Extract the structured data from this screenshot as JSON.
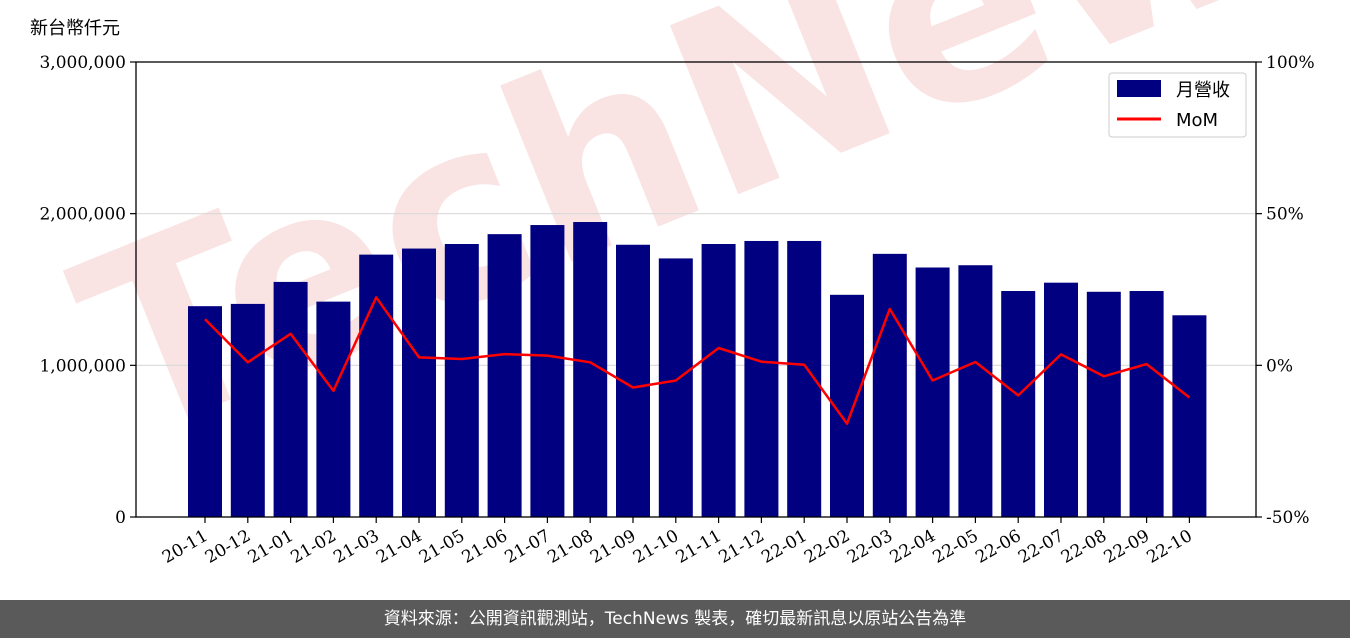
{
  "unit_label": "新台幣仟元",
  "footer_text": "資料來源：公開資訊觀測站，TechNews 製表，確切最新訊息以原站公告為準",
  "colors": {
    "bar": "#000080",
    "line": "#ff0000",
    "grid": "#d9d9d9",
    "footer_bg": "#5a5a5a"
  },
  "chart_data": {
    "type": "bar",
    "categories": [
      "20-11",
      "20-12",
      "21-01",
      "21-02",
      "21-03",
      "21-04",
      "21-05",
      "21-06",
      "21-07",
      "21-08",
      "21-09",
      "21-10",
      "21-11",
      "21-12",
      "22-01",
      "22-02",
      "22-03",
      "22-04",
      "22-05",
      "22-06",
      "22-07",
      "22-08",
      "22-09",
      "22-10"
    ],
    "series": [
      {
        "name": "月營收",
        "type": "bar",
        "axis": "left",
        "values": [
          1390000,
          1405000,
          1550000,
          1420000,
          1730000,
          1770000,
          1800000,
          1865000,
          1925000,
          1945000,
          1795000,
          1705000,
          1800000,
          1820000,
          1820000,
          1465000,
          1735000,
          1645000,
          1660000,
          1490000,
          1545000,
          1485000,
          1490000,
          1330000
        ]
      },
      {
        "name": "MoM",
        "type": "line",
        "axis": "right",
        "values": [
          15.2,
          1.0,
          10.4,
          -8.4,
          22.4,
          2.6,
          2.1,
          3.7,
          3.2,
          1.0,
          -7.3,
          -5.0,
          5.7,
          1.2,
          0.2,
          -19.2,
          18.6,
          -5.0,
          1.1,
          -9.9,
          3.6,
          -3.6,
          0.4,
          -10.6
        ]
      }
    ],
    "y_left": {
      "lim": [
        0,
        3000000
      ],
      "ticks": [
        0,
        1000000,
        2000000,
        3000000
      ],
      "tick_labels": [
        "0",
        "1,000,000",
        "2,000,000",
        "3,000,000"
      ]
    },
    "y_right": {
      "lim": [
        -50,
        100
      ],
      "ticks": [
        -50,
        0,
        50,
        100
      ],
      "tick_labels": [
        "-50%",
        "0%",
        "50%",
        "100%"
      ]
    },
    "grid": true,
    "legend": "top-right",
    "watermark": "TechNews"
  }
}
